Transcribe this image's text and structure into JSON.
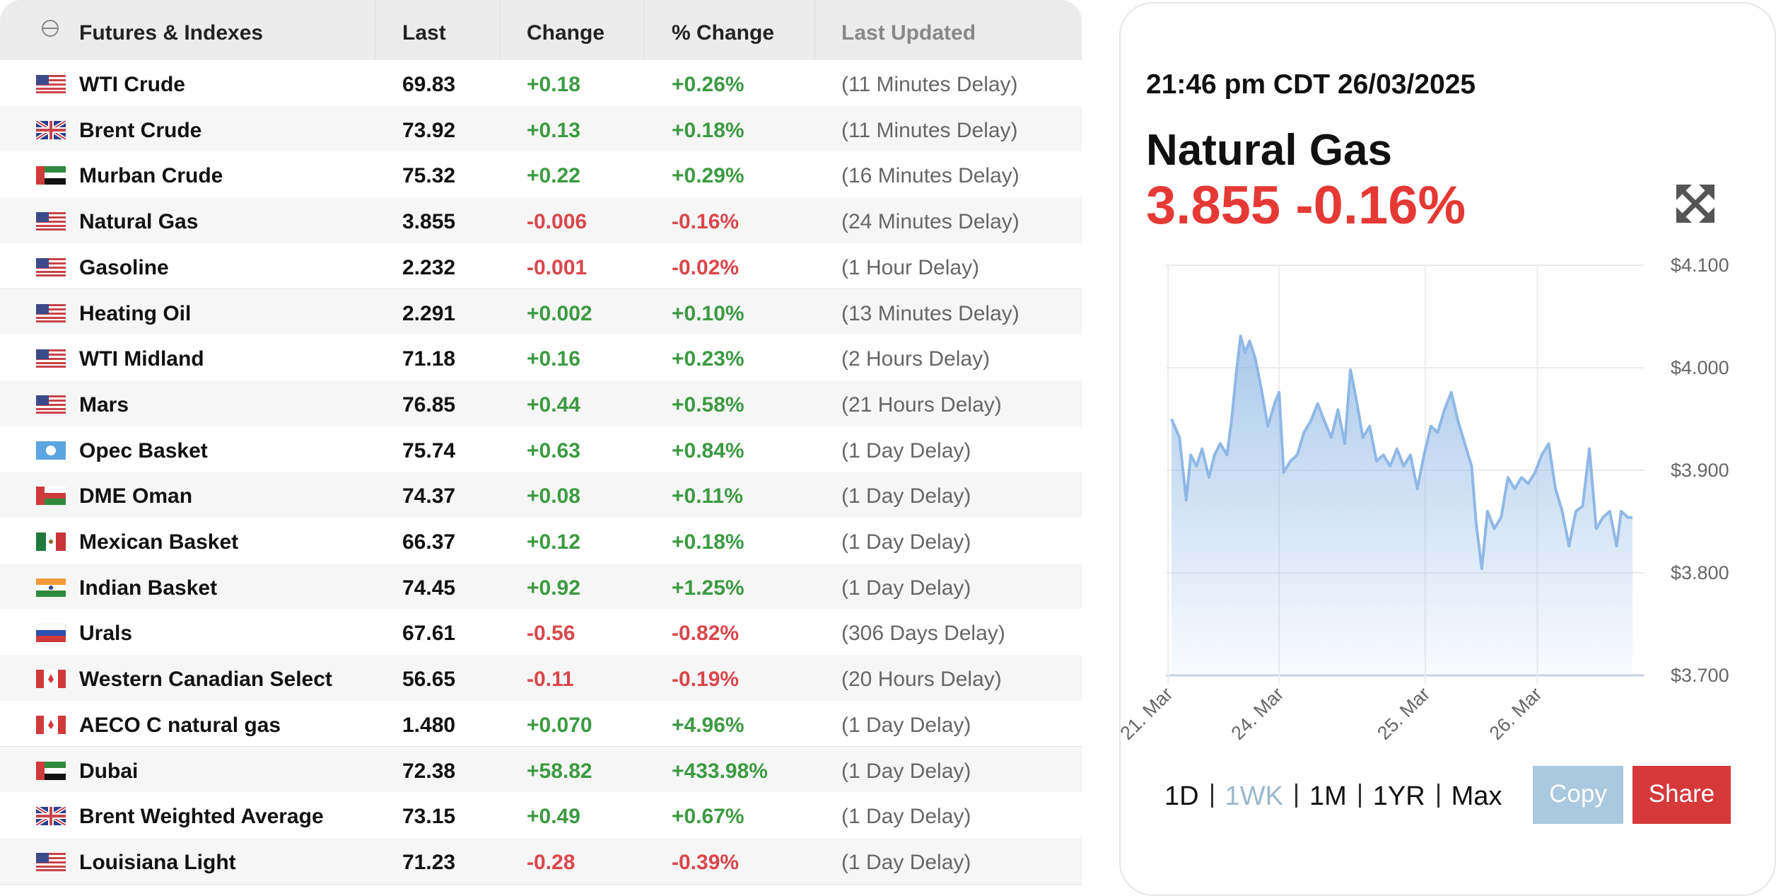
{
  "table": {
    "columns": [
      "Futures & Indexes",
      "Last",
      "Change",
      "% Change",
      "Last Updated"
    ],
    "rows": [
      [
        "WTI Crude",
        "69.83",
        "+0.18",
        "+0.26%",
        "(11 Minutes Delay)"
      ],
      [
        "Brent Crude",
        "73.92",
        "+0.13",
        "+0.18%",
        "(11 Minutes Delay)"
      ],
      [
        "Murban Crude",
        "75.32",
        "+0.22",
        "+0.29%",
        "(16 Minutes Delay)"
      ],
      [
        "Natural Gas",
        "3.855",
        "-0.006",
        "-0.16%",
        "(24 Minutes Delay)"
      ],
      [
        "Gasoline",
        "2.232",
        "-0.001",
        "-0.02%",
        "(1 Hour Delay)"
      ],
      [
        "Heating Oil",
        "2.291",
        "+0.002",
        "+0.10%",
        "(13 Minutes Delay)"
      ],
      [
        "WTI Midland",
        "71.18",
        "+0.16",
        "+0.23%",
        "(2 Hours Delay)"
      ],
      [
        "Mars",
        "76.85",
        "+0.44",
        "+0.58%",
        "(21 Hours Delay)"
      ],
      [
        "Opec Basket",
        "75.74",
        "+0.63",
        "+0.84%",
        "(1 Day Delay)"
      ],
      [
        "DME Oman",
        "74.37",
        "+0.08",
        "+0.11%",
        "(1 Day Delay)"
      ],
      [
        "Mexican Basket",
        "66.37",
        "+0.12",
        "+0.18%",
        "(1 Day Delay)"
      ],
      [
        "Indian Basket",
        "74.45",
        "+0.92",
        "+1.25%",
        "(1 Day Delay)"
      ],
      [
        "Urals",
        "67.61",
        "-0.56",
        "-0.82%",
        "(306 Days Delay)"
      ],
      [
        "Western Canadian Select",
        "56.65",
        "-0.11",
        "-0.19%",
        "(20 Hours Delay)"
      ],
      [
        "AECO C natural gas",
        "1.480",
        "+0.070",
        "+4.96%",
        "(1 Day Delay)"
      ],
      [
        "Dubai",
        "72.38",
        "+58.82",
        "+433.98%",
        "(1 Day Delay)"
      ],
      [
        "Brent Weighted Average",
        "73.15",
        "+0.49",
        "+0.67%",
        "(1 Day Delay)"
      ],
      [
        "Louisiana Light",
        "71.23",
        "-0.28",
        "-0.39%",
        "(1 Day Delay)"
      ]
    ]
  },
  "panel": {
    "timestamp": "21:46 pm CDT 26/03/2025",
    "name": "Natural Gas",
    "price": "3.855",
    "change": "-0.16%",
    "ranges": [
      "1D",
      "1WK",
      "1M",
      "1YR",
      "Max"
    ],
    "active_range": 1,
    "buttons": [
      "Copy",
      "Share"
    ]
  },
  "chart_data": {
    "type": "line",
    "color": "#8fb8e6",
    "x": [
      5,
      12,
      18,
      22,
      27,
      32,
      38,
      43,
      48,
      54,
      58,
      62,
      66,
      70,
      74,
      79,
      84,
      90,
      96,
      100,
      104,
      110,
      116,
      122,
      128,
      134,
      140,
      146,
      152,
      158,
      163,
      168,
      174,
      180,
      186,
      192,
      198,
      204,
      210,
      216,
      222,
      228,
      234,
      240,
      246,
      252,
      258,
      264,
      270,
      274,
      279,
      284,
      290,
      296,
      302,
      308,
      314,
      320,
      326,
      332,
      338,
      344,
      350,
      356,
      362,
      368,
      374,
      380,
      386,
      392,
      398,
      402,
      408,
      412
    ],
    "values": [
      3.95,
      3.932,
      3.871,
      3.915,
      3.904,
      3.921,
      3.893,
      3.915,
      3.926,
      3.915,
      3.948,
      3.993,
      4.031,
      4.015,
      4.026,
      4.009,
      3.981,
      3.943,
      3.965,
      3.976,
      3.898,
      3.909,
      3.915,
      3.937,
      3.948,
      3.965,
      3.948,
      3.932,
      3.959,
      3.926,
      3.998,
      3.97,
      3.932,
      3.943,
      3.909,
      3.915,
      3.904,
      3.921,
      3.904,
      3.915,
      3.882,
      3.915,
      3.943,
      3.937,
      3.959,
      3.976,
      3.948,
      3.926,
      3.904,
      3.848,
      3.804,
      3.86,
      3.843,
      3.854,
      3.893,
      3.882,
      3.893,
      3.887,
      3.898,
      3.915,
      3.926,
      3.882,
      3.86,
      3.826,
      3.86,
      3.865,
      3.921,
      3.843,
      3.854,
      3.86,
      3.826,
      3.86,
      3.854,
      3.854
    ],
    "xlim": [
      0,
      422
    ],
    "xticks": [
      {
        "value": 2,
        "label": "21. Mar"
      },
      {
        "value": 100,
        "label": "24. Mar"
      },
      {
        "value": 229,
        "label": "25. Mar"
      },
      {
        "value": 328,
        "label": "26. Mar"
      }
    ],
    "ylim": [
      3.7,
      4.1
    ],
    "yticks": [
      {
        "value": 3.7,
        "label": "$3.700"
      },
      {
        "value": 3.8,
        "label": "$3.800"
      },
      {
        "value": 3.9,
        "label": "$3.900"
      },
      {
        "value": 4.0,
        "label": "$4.000"
      },
      {
        "value": 4.1,
        "label": "$4.100"
      }
    ],
    "grid": true
  }
}
